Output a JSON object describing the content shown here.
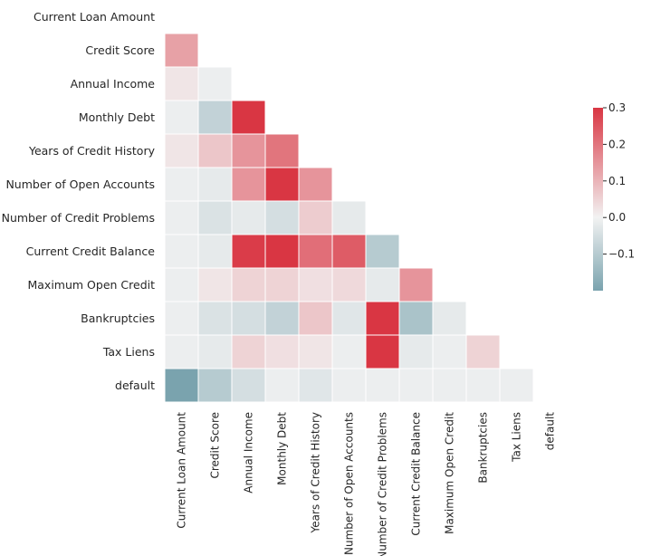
{
  "chart_data": {
    "type": "heatmap",
    "mask": "upper-triangle-including-diagonal",
    "variables": [
      "Current Loan Amount",
      "Credit Score",
      "Annual Income",
      "Monthly Debt",
      "Years of Credit History",
      "Number of Open Accounts",
      "Number of Credit Problems",
      "Current Credit Balance",
      "Maximum Open Credit",
      "Bankruptcies",
      "Tax Liens",
      "default"
    ],
    "values": [
      [],
      [
        0.13
      ],
      [
        0.02,
        -0.01
      ],
      [
        -0.01,
        -0.08,
        0.3
      ],
      [
        0.02,
        0.07,
        0.15,
        0.2
      ],
      [
        -0.01,
        -0.02,
        0.15,
        0.3,
        0.15
      ],
      [
        -0.01,
        -0.04,
        -0.02,
        -0.05,
        0.06,
        -0.02
      ],
      [
        -0.01,
        -0.02,
        0.29,
        0.3,
        0.21,
        0.24,
        -0.1
      ],
      [
        -0.01,
        0.02,
        0.05,
        0.05,
        0.03,
        0.04,
        -0.02,
        0.15
      ],
      [
        -0.01,
        -0.04,
        -0.05,
        -0.08,
        0.07,
        -0.03,
        0.3,
        -0.12,
        -0.02
      ],
      [
        -0.01,
        -0.02,
        0.05,
        0.03,
        0.02,
        -0.01,
        0.3,
        -0.02,
        -0.01,
        0.05
      ],
      [
        -0.2,
        -0.1,
        -0.05,
        -0.01,
        -0.03,
        -0.01,
        -0.01,
        -0.01,
        -0.01,
        -0.01,
        -0.01
      ]
    ],
    "vmin": -0.2,
    "vmax": 0.3,
    "colorbar": {
      "ticks": [
        0.3,
        0.2,
        0.1,
        0.0,
        -0.1
      ],
      "tick_labels": [
        "0.3",
        "0.2",
        "0.1",
        "0.0",
        "−0.1"
      ]
    },
    "colormap": {
      "negative": "#7aa3ae",
      "center": "#f2f2f2",
      "positive": "#d93643"
    },
    "grid": false
  }
}
